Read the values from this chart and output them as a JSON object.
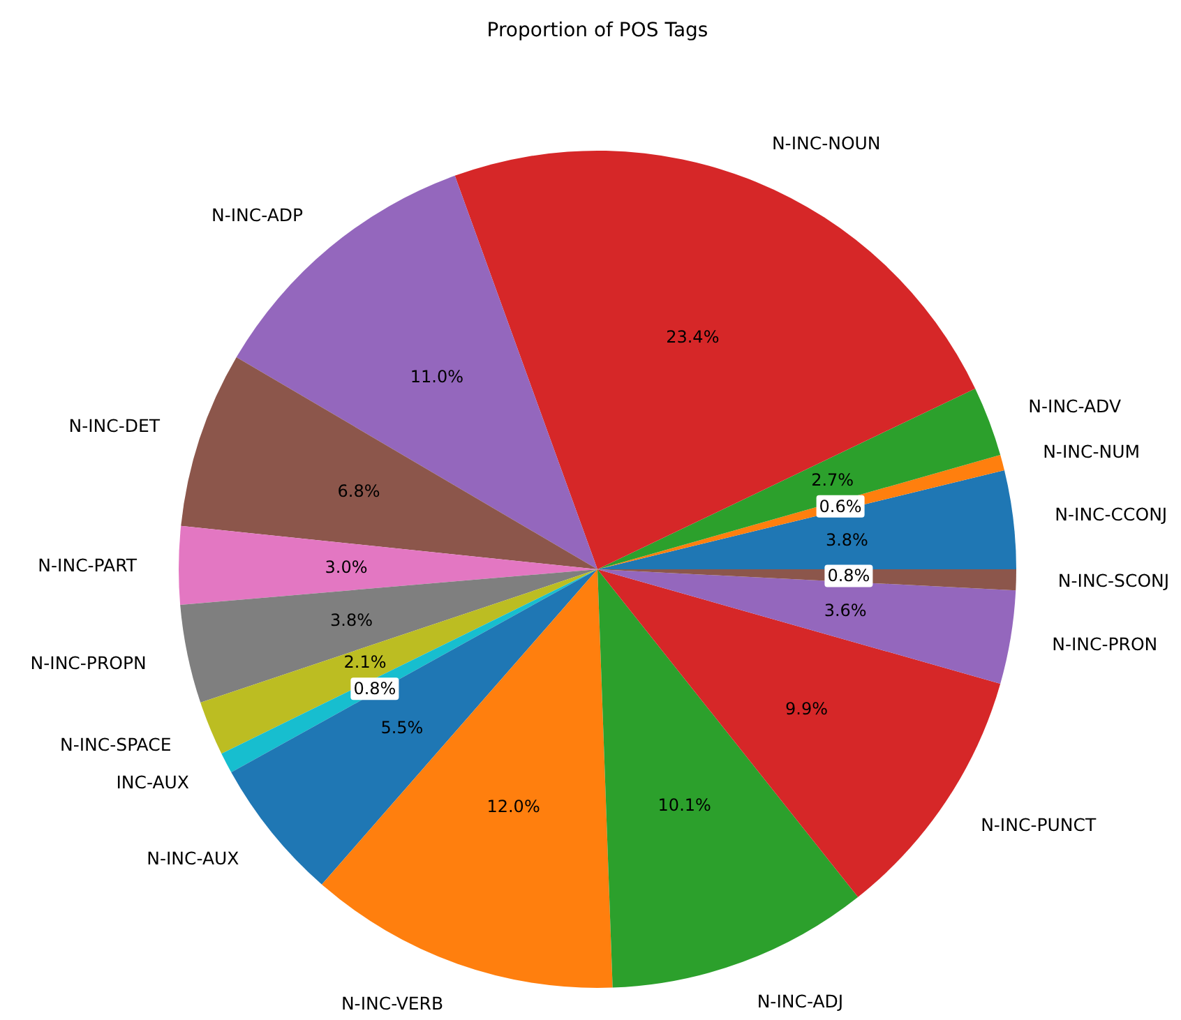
{
  "chart_data": {
    "type": "pie",
    "title": "Proportion of POS Tags",
    "categories": [
      "N-INC-CCONJ",
      "N-INC-NUM",
      "N-INC-ADV",
      "N-INC-NOUN",
      "N-INC-ADP",
      "N-INC-DET",
      "N-INC-PART",
      "N-INC-PROPN",
      "N-INC-SPACE",
      "INC-AUX",
      "N-INC-AUX",
      "N-INC-VERB",
      "N-INC-ADJ",
      "N-INC-PUNCT",
      "N-INC-PRON",
      "N-INC-SCONJ"
    ],
    "values": [
      3.8,
      0.6,
      2.7,
      23.4,
      11.0,
      6.8,
      3.0,
      3.8,
      2.1,
      0.8,
      5.5,
      12.0,
      10.1,
      9.9,
      3.6,
      0.8
    ],
    "value_labels": [
      "3.8%",
      "0.6%",
      "2.7%",
      "23.4%",
      "11.0%",
      "6.8%",
      "3.0%",
      "3.8%",
      "2.1%",
      "0.8%",
      "5.5%",
      "12.0%",
      "10.1%",
      "9.9%",
      "3.6%",
      "0.8%"
    ],
    "colors": [
      "#1f77b4",
      "#ff7f0e",
      "#2ca02c",
      "#d62728",
      "#9467bd",
      "#8c564b",
      "#e377c2",
      "#7f7f7f",
      "#bcbd22",
      "#17becf",
      "#1f77b4",
      "#ff7f0e",
      "#2ca02c",
      "#d62728",
      "#9467bd",
      "#8c564b"
    ]
  }
}
